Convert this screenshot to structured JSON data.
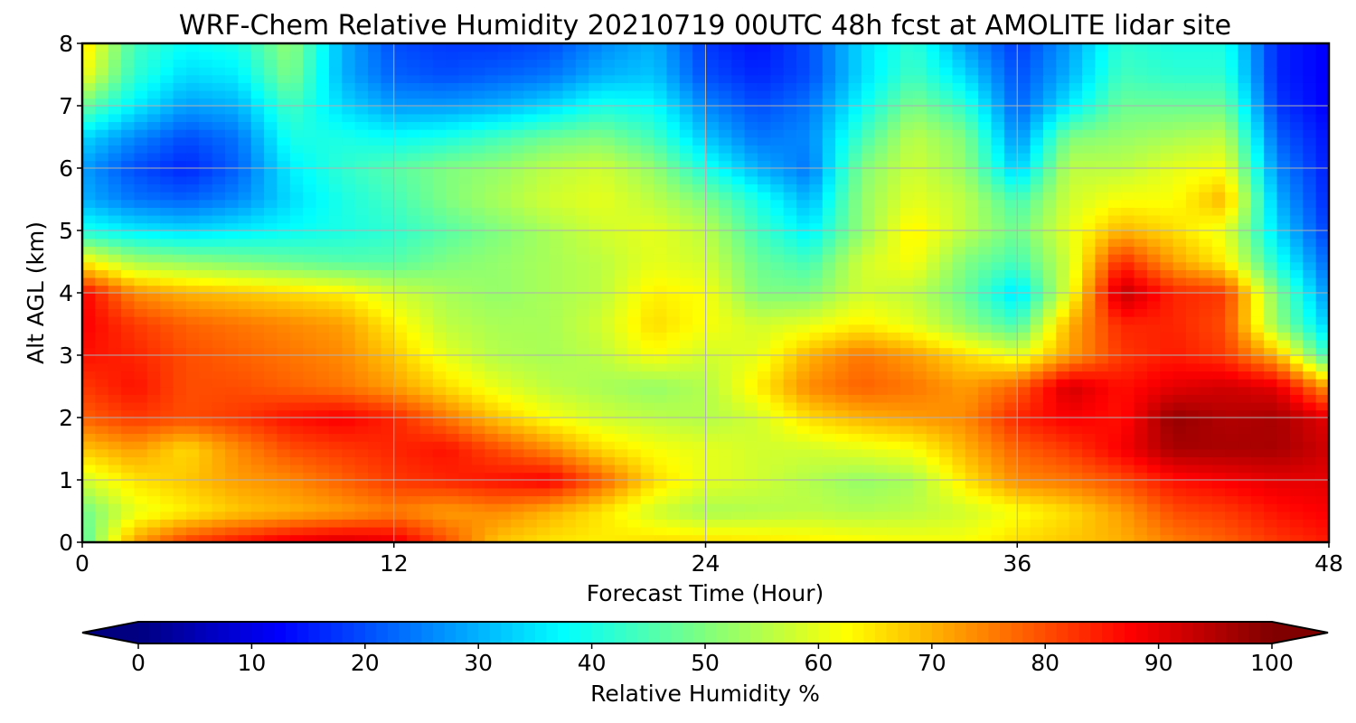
{
  "chart_data": {
    "type": "heatmap",
    "title": "WRF-Chem Relative Humidity 20210719 00UTC 48h fcst at AMOLITE lidar site",
    "xlabel": "Forecast Time (Hour)",
    "ylabel": "Alt AGL (km)",
    "xlim": [
      0,
      48
    ],
    "ylim": [
      0,
      8
    ],
    "x_ticks": [
      0,
      12,
      24,
      36,
      48
    ],
    "y_ticks": [
      0,
      1,
      2,
      3,
      4,
      5,
      6,
      7,
      8
    ],
    "grid": true,
    "colormap": "jet",
    "colorbar": {
      "label": "Relative Humidity %",
      "range": [
        0,
        100
      ],
      "ticks": [
        0,
        10,
        20,
        30,
        40,
        50,
        60,
        70,
        80,
        90,
        100
      ],
      "orientation": "horizontal",
      "extend": "both"
    },
    "x": [
      0,
      2,
      4,
      6,
      8,
      10,
      12,
      14,
      16,
      18,
      20,
      22,
      24,
      26,
      28,
      30,
      32,
      34,
      36,
      38,
      40,
      42,
      44,
      46,
      48
    ],
    "y": [
      0,
      0.5,
      1,
      1.5,
      2,
      2.5,
      3,
      3.5,
      4,
      4.5,
      5,
      5.5,
      6,
      6.5,
      7,
      7.5,
      8
    ],
    "z": [
      [
        45,
        72,
        82,
        86,
        90,
        92,
        90,
        80,
        68,
        65,
        64,
        66,
        66,
        65,
        64,
        63,
        62,
        62,
        66,
        68,
        70,
        75,
        78,
        82,
        85
      ],
      [
        48,
        60,
        64,
        68,
        70,
        72,
        75,
        72,
        74,
        70,
        65,
        58,
        54,
        55,
        56,
        55,
        56,
        58,
        62,
        66,
        72,
        80,
        82,
        86,
        88
      ],
      [
        58,
        65,
        68,
        72,
        74,
        78,
        82,
        84,
        86,
        88,
        78,
        66,
        60,
        58,
        55,
        52,
        54,
        65,
        74,
        76,
        80,
        86,
        88,
        90,
        90
      ],
      [
        68,
        72,
        66,
        74,
        80,
        82,
        84,
        86,
        80,
        74,
        66,
        62,
        60,
        58,
        58,
        60,
        62,
        70,
        78,
        82,
        88,
        96,
        96,
        96,
        92
      ],
      [
        78,
        82,
        80,
        82,
        86,
        88,
        84,
        76,
        68,
        62,
        58,
        56,
        55,
        58,
        66,
        70,
        72,
        74,
        84,
        88,
        86,
        98,
        95,
        96,
        90
      ],
      [
        82,
        86,
        80,
        80,
        78,
        76,
        72,
        66,
        60,
        56,
        54,
        52,
        55,
        64,
        74,
        78,
        76,
        72,
        78,
        92,
        86,
        90,
        92,
        90,
        72
      ],
      [
        86,
        84,
        80,
        78,
        76,
        74,
        68,
        60,
        55,
        54,
        56,
        62,
        58,
        60,
        70,
        76,
        72,
        66,
        60,
        72,
        82,
        85,
        82,
        70,
        42
      ],
      [
        88,
        82,
        78,
        76,
        74,
        72,
        64,
        56,
        54,
        54,
        58,
        66,
        62,
        58,
        60,
        64,
        60,
        52,
        44,
        70,
        84,
        84,
        80,
        52,
        32
      ],
      [
        88,
        74,
        70,
        68,
        66,
        64,
        58,
        54,
        52,
        54,
        56,
        64,
        62,
        50,
        50,
        58,
        56,
        48,
        34,
        60,
        94,
        84,
        82,
        50,
        26
      ],
      [
        64,
        54,
        52,
        50,
        48,
        46,
        46,
        50,
        52,
        54,
        56,
        60,
        58,
        48,
        44,
        58,
        62,
        50,
        44,
        58,
        84,
        72,
        64,
        40,
        22
      ],
      [
        40,
        36,
        34,
        36,
        38,
        40,
        42,
        46,
        50,
        54,
        58,
        60,
        56,
        44,
        36,
        52,
        64,
        56,
        48,
        60,
        70,
        66,
        60,
        34,
        18
      ],
      [
        30,
        24,
        22,
        26,
        34,
        40,
        44,
        50,
        54,
        58,
        60,
        56,
        50,
        40,
        30,
        52,
        60,
        56,
        44,
        58,
        62,
        62,
        70,
        30,
        16
      ],
      [
        28,
        20,
        16,
        22,
        36,
        42,
        46,
        50,
        52,
        56,
        58,
        52,
        40,
        30,
        24,
        50,
        58,
        52,
        32,
        56,
        56,
        60,
        62,
        26,
        15
      ],
      [
        34,
        26,
        20,
        24,
        40,
        40,
        38,
        40,
        44,
        48,
        50,
        44,
        32,
        24,
        26,
        44,
        56,
        50,
        26,
        50,
        52,
        54,
        56,
        22,
        14
      ],
      [
        48,
        36,
        28,
        30,
        44,
        34,
        28,
        28,
        30,
        34,
        40,
        38,
        26,
        20,
        24,
        38,
        50,
        42,
        22,
        36,
        48,
        48,
        48,
        18,
        12
      ],
      [
        62,
        42,
        34,
        36,
        50,
        30,
        22,
        20,
        22,
        24,
        30,
        32,
        20,
        16,
        20,
        34,
        44,
        34,
        20,
        30,
        44,
        42,
        42,
        16,
        12
      ],
      [
        66,
        44,
        38,
        40,
        52,
        30,
        20,
        18,
        18,
        20,
        26,
        30,
        18,
        14,
        20,
        34,
        42,
        28,
        18,
        28,
        42,
        40,
        40,
        16,
        12
      ]
    ]
  }
}
